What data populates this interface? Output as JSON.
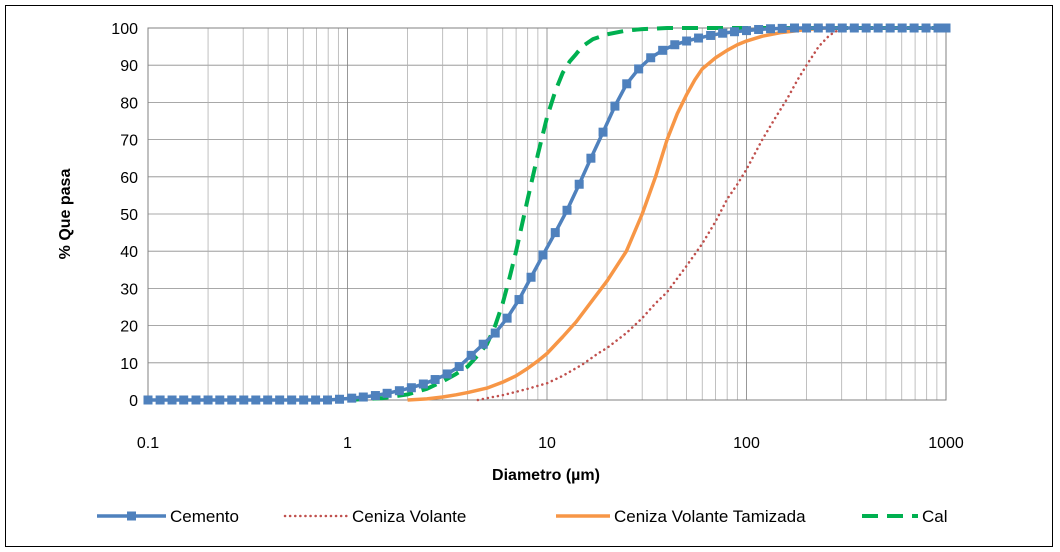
{
  "chart_data": {
    "type": "line",
    "title": "",
    "xlabel": "Diametro (µm)",
    "ylabel": "% Que pasa",
    "x_scale": "log",
    "xlim": [
      0.1,
      1000
    ],
    "ylim": [
      0,
      100
    ],
    "x_ticks": [
      0.1,
      1,
      10,
      100,
      1000
    ],
    "x_tick_labels": [
      "0.1",
      "1",
      "10",
      "100",
      "1000"
    ],
    "y_ticks": [
      0,
      10,
      20,
      30,
      40,
      50,
      60,
      70,
      80,
      90,
      100
    ],
    "y_tick_labels": [
      "0",
      "10",
      "20",
      "30",
      "40",
      "50",
      "60",
      "70",
      "80",
      "90",
      "100"
    ],
    "grid": true,
    "legend_position": "bottom",
    "series": [
      {
        "name": "Cemento",
        "color": "#4F81BD",
        "style": "solid-square-markers",
        "x": [
          0.1,
          0.115,
          0.132,
          0.151,
          0.174,
          0.2,
          0.229,
          0.263,
          0.302,
          0.347,
          0.398,
          0.457,
          0.525,
          0.603,
          0.692,
          0.794,
          0.912,
          1.05,
          1.2,
          1.38,
          1.58,
          1.82,
          2.09,
          2.4,
          2.75,
          3.16,
          3.63,
          4.17,
          4.79,
          5.5,
          6.31,
          7.24,
          8.32,
          9.55,
          11.0,
          12.6,
          14.5,
          16.6,
          19.1,
          21.9,
          25.1,
          28.8,
          33.1,
          38.0,
          43.7,
          50.1,
          57.5,
          66.1,
          75.9,
          87.1,
          100,
          115,
          132,
          151,
          174,
          200,
          229,
          263,
          302,
          347,
          398,
          457,
          525,
          603,
          692,
          794,
          912,
          1000
        ],
        "y": [
          0,
          0,
          0,
          0,
          0,
          0,
          0,
          0,
          0,
          0,
          0,
          0,
          0,
          0,
          0,
          0,
          0.2,
          0.5,
          0.8,
          1.2,
          1.8,
          2.5,
          3.3,
          4.3,
          5.5,
          7,
          9,
          12,
          15,
          18,
          22,
          27,
          33,
          39,
          45,
          51,
          58,
          65,
          72,
          79,
          85,
          89,
          92,
          94,
          95.5,
          96.5,
          97.3,
          98,
          98.6,
          99,
          99.3,
          99.6,
          99.8,
          99.9,
          100,
          100,
          100,
          100,
          100,
          100,
          100,
          100,
          100,
          100,
          100,
          100,
          100,
          100
        ]
      },
      {
        "name": "Ceniza Volante",
        "color": "#C0504D",
        "style": "dotted",
        "x": [
          4.5,
          5,
          6,
          7,
          8,
          9,
          10,
          12,
          15,
          18,
          20,
          25,
          30,
          35,
          40,
          50,
          60,
          70,
          80,
          90,
          100,
          120,
          140,
          160,
          180,
          200,
          230,
          260,
          300,
          400
        ],
        "y": [
          0,
          0.5,
          1.3,
          2.2,
          3,
          3.8,
          4.5,
          6.5,
          9.5,
          12.5,
          14,
          18,
          22,
          26,
          29,
          36,
          42,
          48,
          54,
          58,
          62,
          70,
          76,
          81,
          86,
          90,
          95,
          98,
          100,
          100
        ]
      },
      {
        "name": "Ceniza Volante Tamizada",
        "color": "#F79646",
        "style": "solid",
        "x": [
          2,
          2.5,
          3,
          3.5,
          4,
          5,
          6,
          7,
          8,
          9,
          10,
          12,
          14,
          17,
          20,
          25,
          30,
          35,
          40,
          45,
          50,
          55,
          60,
          70,
          80,
          90,
          100,
          120,
          150,
          200,
          250
        ],
        "y": [
          0,
          0.3,
          0.8,
          1.4,
          2,
          3.2,
          4.8,
          6.5,
          8.5,
          10.5,
          12.5,
          17,
          21,
          27,
          32,
          40,
          50,
          60,
          70,
          77,
          82,
          86,
          89,
          92,
          94,
          95.5,
          96.5,
          97.8,
          98.8,
          99.6,
          100
        ]
      },
      {
        "name": "Cal",
        "color": "#00B050",
        "style": "dashed",
        "x": [
          1,
          1.5,
          2,
          2.5,
          3,
          3.5,
          4,
          4.5,
          5,
          5.5,
          6,
          6.5,
          7,
          8,
          9,
          10,
          11,
          12,
          13,
          14,
          15,
          17,
          20,
          25,
          30,
          40,
          60,
          100,
          200,
          1000
        ],
        "y": [
          0,
          0.5,
          1.5,
          3,
          5,
          7,
          9,
          12,
          15,
          20,
          26,
          33,
          40,
          54,
          66,
          76,
          83,
          88,
          91,
          93,
          95,
          97,
          98.3,
          99.3,
          99.7,
          100,
          100,
          100,
          100,
          100
        ]
      }
    ]
  }
}
